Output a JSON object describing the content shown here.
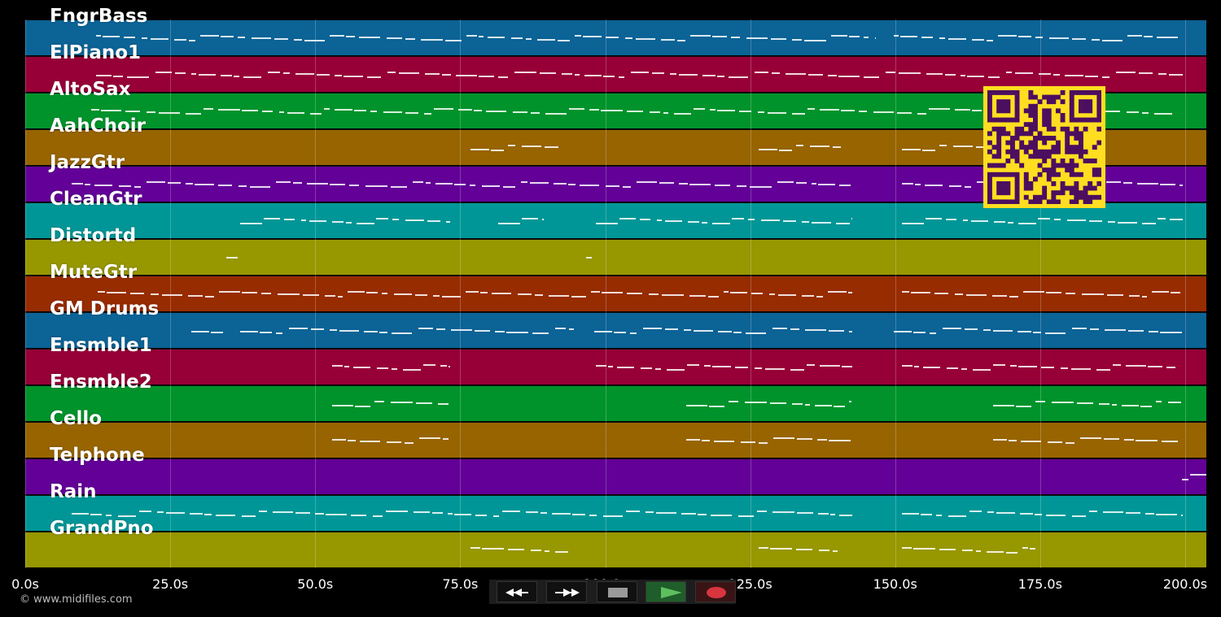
{
  "tracks": [
    {
      "label": "FngrBass",
      "color": "#0b6396"
    },
    {
      "label": "ElPiano1",
      "color": "#970037"
    },
    {
      "label": "AltoSax",
      "color": "#00932b"
    },
    {
      "label": "AahChoir",
      "color": "#976400"
    },
    {
      "label": "JazzGtr",
      "color": "#630097"
    },
    {
      "label": "CleanGtr",
      "color": "#009697"
    },
    {
      "label": "Distortd",
      "color": "#979700"
    },
    {
      "label": "MuteGtr",
      "color": "#972c00"
    },
    {
      "label": "GM Drums",
      "color": "#0b6396"
    },
    {
      "label": "Ensmble1",
      "color": "#970037"
    },
    {
      "label": "Ensmble2",
      "color": "#00932b"
    },
    {
      "label": "Cello",
      "color": "#976400"
    },
    {
      "label": "Telphone",
      "color": "#630097"
    },
    {
      "label": "Rain",
      "color": "#009697"
    },
    {
      "label": "GrandPno",
      "color": "#979700"
    }
  ],
  "timeline": {
    "max_seconds": 204,
    "ticks": [
      "0.0s",
      "25.0s",
      "50.0s",
      "75.0s",
      "100.0s",
      "125.0s",
      "150.0s",
      "175.0s",
      "200.0s"
    ],
    "tick_values": [
      0,
      25,
      50,
      75,
      100,
      125,
      150,
      175,
      200
    ]
  },
  "copyright": "© www.midifiles.com",
  "transport": {
    "rewind": "rewind-icon",
    "fast_forward": "fast-forward-icon",
    "stop": "stop-icon",
    "play": "play-icon",
    "record": "record-icon",
    "colors": {
      "play": "#5fbf5f",
      "record": "#d8353f",
      "stop": "#9a9a9a"
    }
  },
  "qr_code": {
    "fg": "#4c0e5f",
    "bg": "#ffde21"
  }
}
